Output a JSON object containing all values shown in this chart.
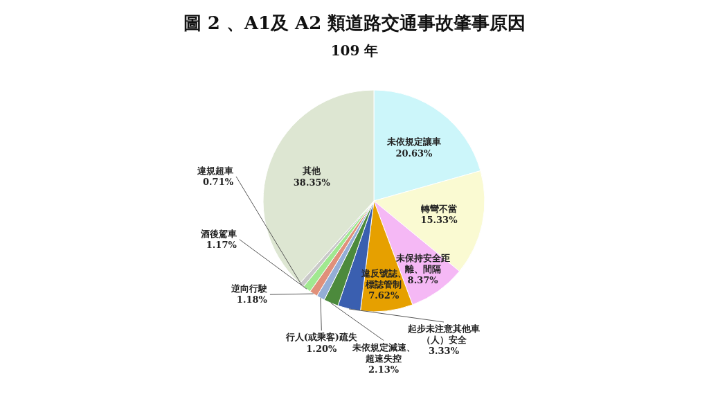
{
  "chart_data": {
    "type": "pie",
    "title": "圖 2 、A1及 A2 類道路交通事故肇事原因",
    "subtitle": "109 年",
    "categories": [
      "未依規定讓車",
      "轉彎不當",
      "未保持安全距離、間隔",
      "違反號誌、標誌管制",
      "起步未注意其他車（人）安全",
      "未依規定減速、超速失控",
      "行人(或乘客)疏失",
      "逆向行駛",
      "酒後駕車",
      "違規超車",
      "其他"
    ],
    "values": [
      20.63,
      15.33,
      8.37,
      7.62,
      3.33,
      2.13,
      1.2,
      1.18,
      1.17,
      0.71,
      38.35
    ],
    "value_labels": [
      "20.63%",
      "15.33%",
      "8.37%",
      "7.62%",
      "3.33%",
      "2.13%",
      "1.20%",
      "1.18%",
      "1.17%",
      "0.71%",
      "38.35%"
    ],
    "colors": [
      "#ccf6fa",
      "#fafad2",
      "#f5b8f5",
      "#e6a000",
      "#3a5fb0",
      "#4c8a3c",
      "#94aed6",
      "#e0907a",
      "#a0e890",
      "#c8c8c8",
      "#dde6d2"
    ],
    "legend": false
  }
}
